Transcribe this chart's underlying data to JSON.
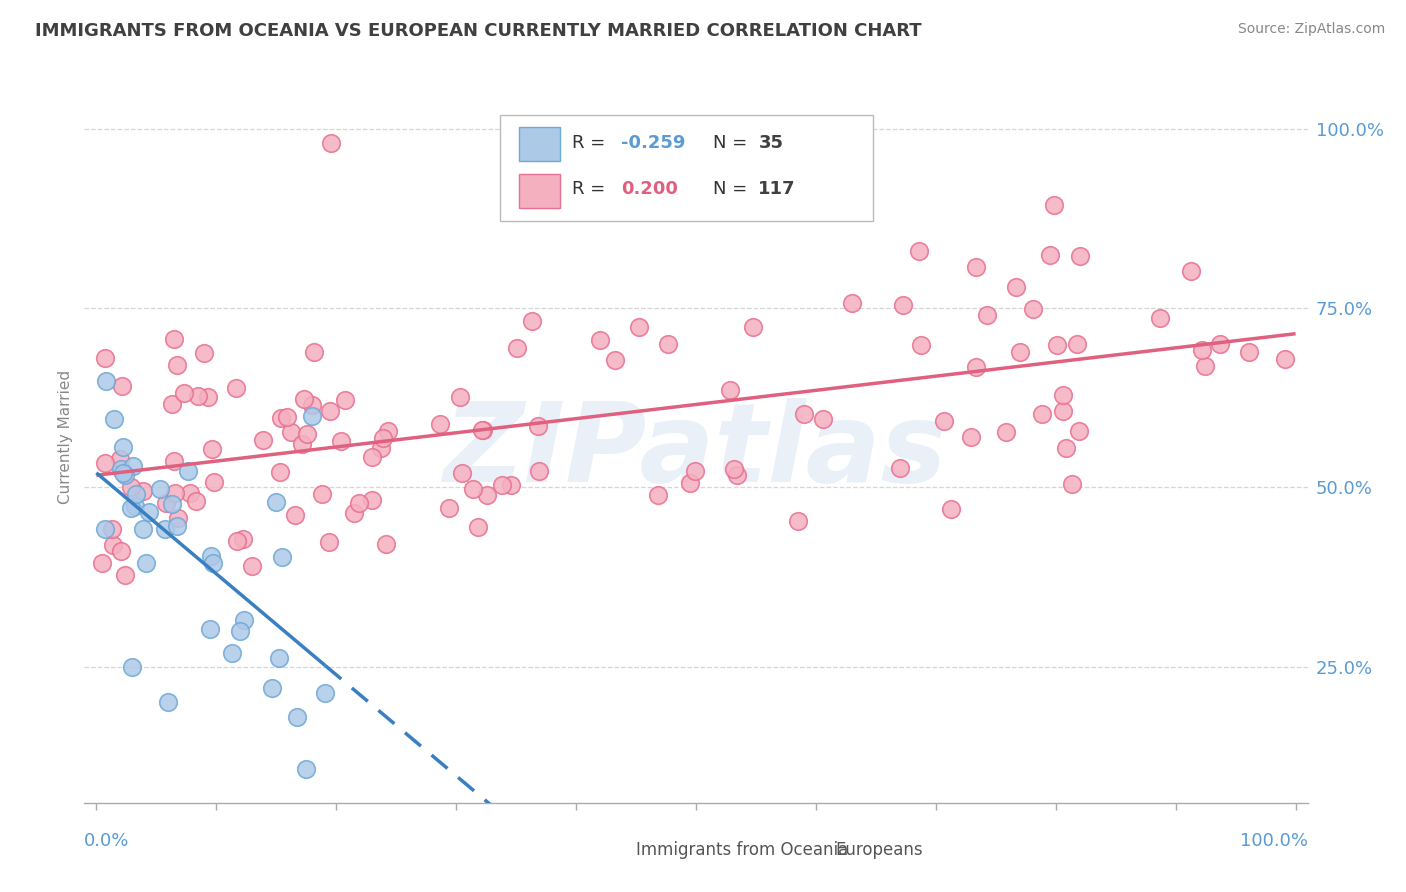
{
  "title": "IMMIGRANTS FROM OCEANIA VS EUROPEAN CURRENTLY MARRIED CORRELATION CHART",
  "source": "Source: ZipAtlas.com",
  "ylabel": "Currently Married",
  "legend_label1": "Immigrants from Oceania",
  "legend_label2": "Europeans",
  "r1": "-0.259",
  "n1": "35",
  "r2": "0.200",
  "n2": "117",
  "watermark": "ZIPatlas",
  "oceania_color": "#adc9e8",
  "oceania_edge_color": "#6fa8d6",
  "european_color": "#f5b0c0",
  "european_edge_color": "#e87090",
  "oceania_line_color": "#3a7fc1",
  "european_line_color": "#e06080",
  "background_color": "#ffffff",
  "grid_color": "#cccccc",
  "title_color": "#404040",
  "axis_color": "#5b9bd5",
  "legend_r_color_oce": "#5b9bd5",
  "legend_n_color_oce": "#404040",
  "legend_r_color_eur": "#5b9bd5",
  "legend_n_color_eur": "#404040"
}
